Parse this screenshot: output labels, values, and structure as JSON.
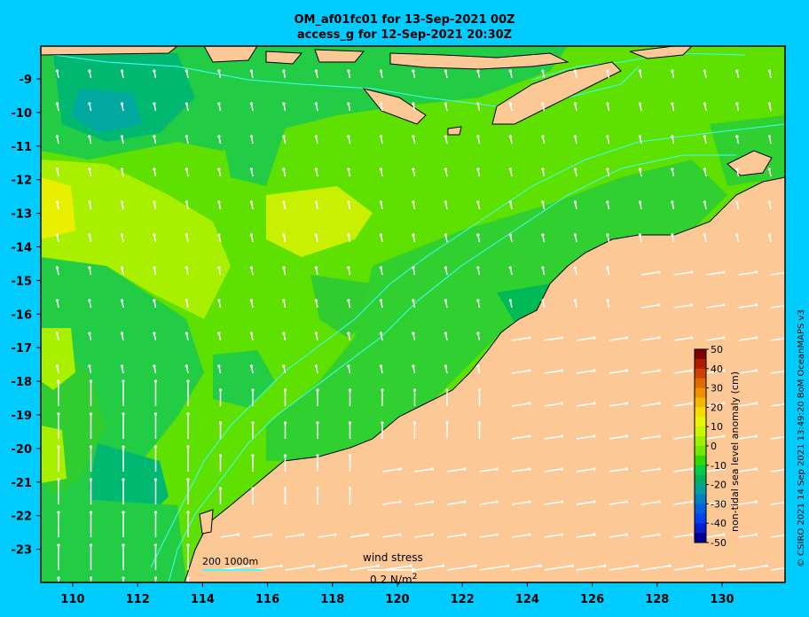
{
  "header": {
    "title_line1": "OM_af01fc01 for 13-Sep-2021 00Z",
    "title_line2": "access_g for 12-Sep-2021 20:30Z"
  },
  "axes": {
    "lon_ticks": [
      "110",
      "112",
      "114",
      "116",
      "118",
      "120",
      "122",
      "124",
      "126",
      "128",
      "130"
    ],
    "lat_ticks": [
      "-9",
      "-10",
      "-11",
      "-12",
      "-13",
      "-14",
      "-15",
      "-16",
      "-17",
      "-18",
      "-19",
      "-20",
      "-21",
      "-22",
      "-23"
    ]
  },
  "colorbar": {
    "label": "non-tidal sea level anomaly (cm)",
    "ticks": [
      "50",
      "40",
      "30",
      "20",
      "10",
      "0",
      "-10",
      "-20",
      "-30",
      "-40",
      "-50"
    ],
    "colors": [
      "#7f0000",
      "#b01a00",
      "#d04000",
      "#e06a00",
      "#f09000",
      "#f5b800",
      "#f5dc00",
      "#e8f500",
      "#c8f500",
      "#9cf000",
      "#70e800",
      "#30d800",
      "#00cc44",
      "#00b060",
      "#00a0a0",
      "#0080c0",
      "#0060e0",
      "#0040f0",
      "#0020d0",
      "#000090"
    ]
  },
  "scale_bar": {
    "label": "200  1000m"
  },
  "wind": {
    "label": "wind stress",
    "unit": "0.2 N/m",
    "exp": "2"
  },
  "credit": "© CSIRO 2021  14 Sep 2021 13:49:20 BoM OceanMAPS v3",
  "colors": {
    "land": "#fcc896",
    "ocean_bg": "#4fd800",
    "frame_bg": "#00ccff",
    "contour": "#40ffff"
  }
}
